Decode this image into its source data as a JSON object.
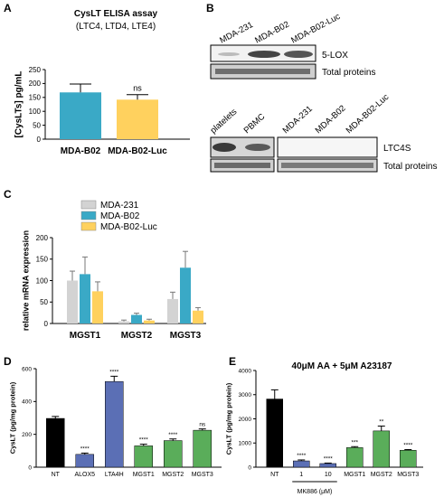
{
  "panel_letters": {
    "a": "A",
    "b": "B",
    "c": "C",
    "d": "D",
    "e": "E"
  },
  "blots": {
    "lox_lanes": [
      "MDA-231",
      "MDA-B02",
      "MDA-B02-Luc"
    ],
    "lox_label": "5-LOX",
    "lox_total": "Total proteins",
    "ltc4s_lanes": [
      "platelets",
      "PBMC",
      "MDA-231",
      "MDA-B02",
      "MDA-B02-Luc"
    ],
    "ltc4s_label": "LTC4S",
    "ltc4s_total": "Total proteins"
  },
  "chart_data": [
    {
      "panel": "A",
      "type": "bar",
      "title": "CysLT ELISA assay",
      "subtitle": "(LTC4, LTD4, LTE4)",
      "xlabel": "",
      "ylabel": "[CysLTs] pg/mL",
      "ylim": [
        0,
        250
      ],
      "yticks": [
        0,
        50,
        100,
        150,
        200,
        250
      ],
      "categories": [
        "MDA-B02",
        "MDA-B02-Luc"
      ],
      "values": [
        168,
        142
      ],
      "errors": [
        30,
        18
      ],
      "annotations": [
        "",
        "ns"
      ],
      "colors": [
        "#3aa9c6",
        "#ffd15e"
      ]
    },
    {
      "panel": "C",
      "type": "bar",
      "xlabel": "",
      "ylabel": "relative mRNA expression",
      "ylim": [
        0,
        200
      ],
      "yticks": [
        0,
        50,
        100,
        150,
        200
      ],
      "categories": [
        "MGST1",
        "MGST2",
        "MGST3"
      ],
      "legend_position": "top",
      "series": [
        {
          "name": "MDA-231",
          "color": "#d3d3d3",
          "values": [
            100,
            5,
            57
          ],
          "errors": [
            22,
            3,
            16
          ]
        },
        {
          "name": "MDA-B02",
          "color": "#3aa9c6",
          "values": [
            115,
            20,
            130
          ],
          "errors": [
            40,
            4,
            38
          ]
        },
        {
          "name": "MDA-B02-Luc",
          "color": "#ffd15e",
          "values": [
            75,
            7,
            30
          ],
          "errors": [
            22,
            3,
            7
          ]
        }
      ]
    },
    {
      "panel": "D",
      "type": "bar",
      "xlabel": "",
      "ylabel": "CysLT (pg/mg protein)",
      "ylim": [
        0,
        600
      ],
      "yticks": [
        0,
        200,
        400,
        600
      ],
      "categories": [
        "NT",
        "ALOX5",
        "LTA4H",
        "MGST1",
        "MGST2",
        "MGST3"
      ],
      "values": [
        297,
        78,
        522,
        130,
        162,
        225
      ],
      "errors": [
        12,
        8,
        32,
        10,
        10,
        8
      ],
      "annotations": [
        "",
        "****",
        "****",
        "****",
        "****",
        "ns"
      ],
      "colors": [
        "#000000",
        "#5b6fb5",
        "#5b6fb5",
        "#5aad5a",
        "#5aad5a",
        "#5aad5a"
      ]
    },
    {
      "panel": "E",
      "type": "bar",
      "title": "40μM AA + 5μM A23187",
      "xlabel": "",
      "ylabel": "CysLT (pg/mg protein)",
      "ylim": [
        0,
        4000
      ],
      "yticks": [
        0,
        1000,
        2000,
        3000,
        4000
      ],
      "categories": [
        "NT",
        "1",
        "10",
        "MGST1",
        "MGST2",
        "MGST3"
      ],
      "group_label": "MK886 (μM)",
      "values": [
        2820,
        260,
        150,
        810,
        1500,
        700
      ],
      "errors": [
        380,
        40,
        20,
        40,
        200,
        30
      ],
      "annotations": [
        "",
        "****",
        "****",
        "***",
        "**",
        "****"
      ],
      "colors": [
        "#000000",
        "#5b6fb5",
        "#5b6fb5",
        "#5aad5a",
        "#5aad5a",
        "#5aad5a"
      ]
    }
  ]
}
